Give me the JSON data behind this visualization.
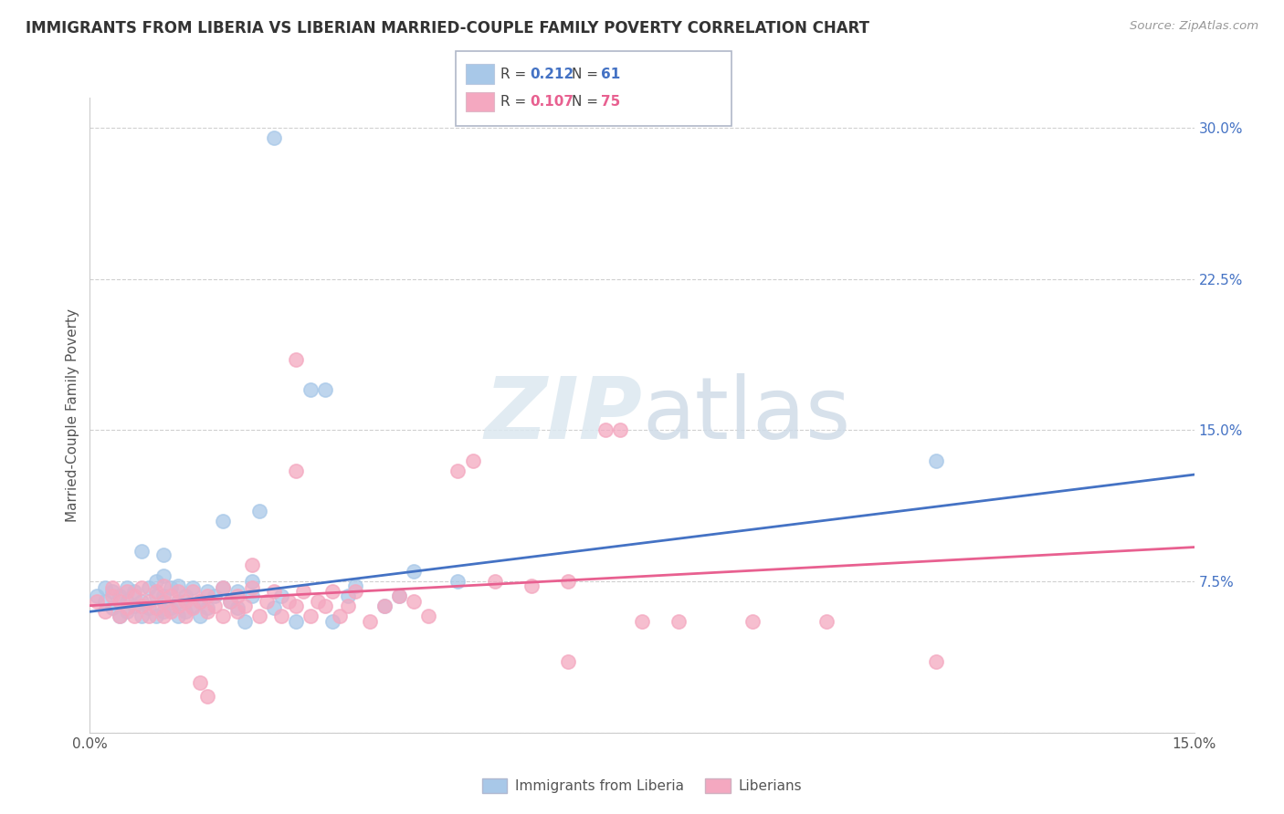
{
  "title": "IMMIGRANTS FROM LIBERIA VS LIBERIAN MARRIED-COUPLE FAMILY POVERTY CORRELATION CHART",
  "source": "Source: ZipAtlas.com",
  "ylabel": "Married-Couple Family Poverty",
  "ytick_values": [
    0.0,
    0.075,
    0.15,
    0.225,
    0.3
  ],
  "ytick_labels": [
    "0.0%",
    "7.5%",
    "15.0%",
    "22.5%",
    "30.0%"
  ],
  "xlim": [
    0.0,
    0.15
  ],
  "ylim": [
    0.0,
    0.315
  ],
  "r_blue": "0.212",
  "n_blue": "61",
  "r_pink": "0.107",
  "n_pink": "75",
  "legend_label_blue": "Immigrants from Liberia",
  "legend_label_pink": "Liberians",
  "blue_color": "#a8c8e8",
  "pink_color": "#f4a8c0",
  "line_blue": "#4472c4",
  "line_pink": "#e86090",
  "watermark_zip": "ZIP",
  "watermark_atlas": "atlas",
  "blue_scatter": [
    [
      0.001,
      0.068
    ],
    [
      0.002,
      0.065
    ],
    [
      0.002,
      0.072
    ],
    [
      0.003,
      0.062
    ],
    [
      0.003,
      0.07
    ],
    [
      0.004,
      0.058
    ],
    [
      0.004,
      0.068
    ],
    [
      0.005,
      0.06
    ],
    [
      0.005,
      0.065
    ],
    [
      0.005,
      0.072
    ],
    [
      0.006,
      0.063
    ],
    [
      0.006,
      0.07
    ],
    [
      0.007,
      0.058
    ],
    [
      0.007,
      0.065
    ],
    [
      0.007,
      0.09
    ],
    [
      0.008,
      0.062
    ],
    [
      0.008,
      0.072
    ],
    [
      0.009,
      0.058
    ],
    [
      0.009,
      0.068
    ],
    [
      0.009,
      0.075
    ],
    [
      0.01,
      0.06
    ],
    [
      0.01,
      0.068
    ],
    [
      0.01,
      0.078
    ],
    [
      0.01,
      0.088
    ],
    [
      0.011,
      0.062
    ],
    [
      0.011,
      0.072
    ],
    [
      0.012,
      0.058
    ],
    [
      0.012,
      0.065
    ],
    [
      0.012,
      0.073
    ],
    [
      0.013,
      0.06
    ],
    [
      0.013,
      0.068
    ],
    [
      0.014,
      0.063
    ],
    [
      0.014,
      0.072
    ],
    [
      0.015,
      0.058
    ],
    [
      0.015,
      0.065
    ],
    [
      0.016,
      0.062
    ],
    [
      0.016,
      0.07
    ],
    [
      0.017,
      0.068
    ],
    [
      0.018,
      0.072
    ],
    [
      0.018,
      0.105
    ],
    [
      0.019,
      0.065
    ],
    [
      0.02,
      0.062
    ],
    [
      0.02,
      0.07
    ],
    [
      0.021,
      0.055
    ],
    [
      0.022,
      0.068
    ],
    [
      0.022,
      0.075
    ],
    [
      0.023,
      0.11
    ],
    [
      0.025,
      0.062
    ],
    [
      0.025,
      0.295
    ],
    [
      0.026,
      0.068
    ],
    [
      0.028,
      0.055
    ],
    [
      0.03,
      0.17
    ],
    [
      0.032,
      0.17
    ],
    [
      0.033,
      0.055
    ],
    [
      0.035,
      0.068
    ],
    [
      0.036,
      0.073
    ],
    [
      0.04,
      0.063
    ],
    [
      0.042,
      0.068
    ],
    [
      0.044,
      0.08
    ],
    [
      0.05,
      0.075
    ],
    [
      0.115,
      0.135
    ]
  ],
  "pink_scatter": [
    [
      0.001,
      0.065
    ],
    [
      0.002,
      0.06
    ],
    [
      0.003,
      0.068
    ],
    [
      0.003,
      0.072
    ],
    [
      0.004,
      0.058
    ],
    [
      0.004,
      0.065
    ],
    [
      0.005,
      0.062
    ],
    [
      0.005,
      0.07
    ],
    [
      0.006,
      0.058
    ],
    [
      0.006,
      0.068
    ],
    [
      0.007,
      0.063
    ],
    [
      0.007,
      0.072
    ],
    [
      0.008,
      0.058
    ],
    [
      0.008,
      0.065
    ],
    [
      0.009,
      0.062
    ],
    [
      0.009,
      0.07
    ],
    [
      0.01,
      0.058
    ],
    [
      0.01,
      0.065
    ],
    [
      0.01,
      0.073
    ],
    [
      0.011,
      0.06
    ],
    [
      0.011,
      0.068
    ],
    [
      0.012,
      0.063
    ],
    [
      0.012,
      0.07
    ],
    [
      0.013,
      0.058
    ],
    [
      0.013,
      0.065
    ],
    [
      0.014,
      0.062
    ],
    [
      0.014,
      0.07
    ],
    [
      0.015,
      0.025
    ],
    [
      0.015,
      0.065
    ],
    [
      0.016,
      0.018
    ],
    [
      0.016,
      0.06
    ],
    [
      0.016,
      0.068
    ],
    [
      0.017,
      0.063
    ],
    [
      0.018,
      0.058
    ],
    [
      0.018,
      0.072
    ],
    [
      0.019,
      0.065
    ],
    [
      0.02,
      0.06
    ],
    [
      0.02,
      0.068
    ],
    [
      0.021,
      0.063
    ],
    [
      0.022,
      0.072
    ],
    [
      0.022,
      0.083
    ],
    [
      0.023,
      0.058
    ],
    [
      0.024,
      0.065
    ],
    [
      0.025,
      0.07
    ],
    [
      0.026,
      0.058
    ],
    [
      0.027,
      0.065
    ],
    [
      0.028,
      0.063
    ],
    [
      0.028,
      0.13
    ],
    [
      0.028,
      0.185
    ],
    [
      0.029,
      0.07
    ],
    [
      0.03,
      0.058
    ],
    [
      0.031,
      0.065
    ],
    [
      0.032,
      0.063
    ],
    [
      0.033,
      0.07
    ],
    [
      0.034,
      0.058
    ],
    [
      0.035,
      0.063
    ],
    [
      0.036,
      0.07
    ],
    [
      0.038,
      0.055
    ],
    [
      0.04,
      0.063
    ],
    [
      0.042,
      0.068
    ],
    [
      0.044,
      0.065
    ],
    [
      0.046,
      0.058
    ],
    [
      0.05,
      0.13
    ],
    [
      0.052,
      0.135
    ],
    [
      0.055,
      0.075
    ],
    [
      0.06,
      0.073
    ],
    [
      0.065,
      0.035
    ],
    [
      0.065,
      0.075
    ],
    [
      0.07,
      0.15
    ],
    [
      0.072,
      0.15
    ],
    [
      0.075,
      0.055
    ],
    [
      0.08,
      0.055
    ],
    [
      0.09,
      0.055
    ],
    [
      0.1,
      0.055
    ],
    [
      0.115,
      0.035
    ]
  ],
  "blue_line_x": [
    0.0,
    0.15
  ],
  "blue_line_y": [
    0.06,
    0.128
  ],
  "pink_line_x": [
    0.0,
    0.15
  ],
  "pink_line_y": [
    0.063,
    0.092
  ]
}
